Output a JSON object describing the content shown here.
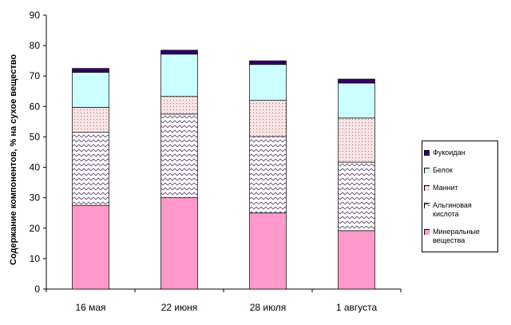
{
  "chart_data": {
    "type": "stacked_bar",
    "y_label": "Содержание компонентов, % на сухое вещество",
    "categories": [
      "16 мая",
      "22 июня",
      "28 июля",
      "1 августа"
    ],
    "series": [
      {
        "name": "Минеральные вещества",
        "color": "#ff99cc",
        "values": [
          27.5,
          30,
          25,
          19.2
        ]
      },
      {
        "name": "Альгиновая кислота",
        "color": "#ffffff",
        "pattern": "zigzag",
        "values": [
          24,
          27.5,
          25.1,
          22.5
        ]
      },
      {
        "name": "Маннит",
        "color": "#f8e4e4",
        "pattern": "dots",
        "values": [
          8.2,
          5.8,
          11.9,
          14.5
        ]
      },
      {
        "name": "Белок",
        "color": "#ccffff",
        "values": [
          11.5,
          13.9,
          11.8,
          11.5
        ]
      },
      {
        "name": "Фукоидан",
        "color": "#330066",
        "values": [
          1.3,
          1.3,
          1.2,
          1.3
        ]
      }
    ],
    "ylim": [
      0,
      90
    ],
    "yticks": [
      0,
      10,
      20,
      30,
      40,
      50,
      60,
      70,
      80,
      90
    ]
  }
}
